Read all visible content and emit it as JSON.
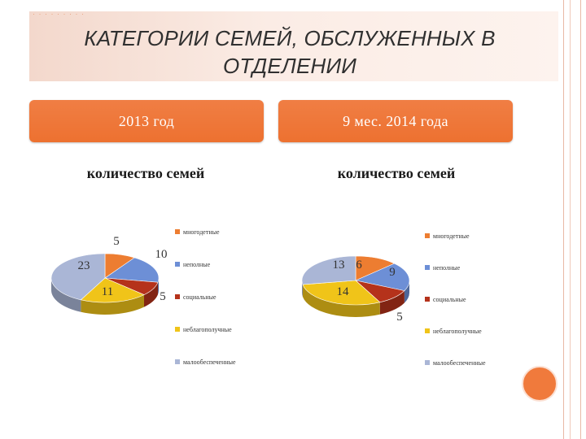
{
  "slide": {
    "title": "КАТЕГОРИИ СЕМЕЙ, ОБСЛУЖЕННЫХ В ОТДЕЛЕНИИ",
    "tab_left": "2013 год",
    "tab_right": "9 мес. 2014 года"
  },
  "chart_data": [
    {
      "type": "pie",
      "title": "количество семей",
      "categories": [
        "многодетные",
        "неполные",
        "социальные",
        "неблагополучные",
        "малообеспеченные"
      ],
      "values": [
        5,
        10,
        5,
        11,
        23
      ],
      "colors": [
        "#ed7d31",
        "#6d8fd6",
        "#b5321b",
        "#f0c419",
        "#aab6d6"
      ],
      "legend": "right"
    },
    {
      "type": "pie",
      "title": "количество семей",
      "categories": [
        "многодетные",
        "неполные",
        "социальные",
        "неблагополучные",
        "малообеспеченные"
      ],
      "values": [
        6,
        9,
        5,
        14,
        13
      ],
      "colors": [
        "#ed7d31",
        "#6d8fd6",
        "#b5321b",
        "#f0c419",
        "#aab6d6"
      ],
      "legend": "right"
    }
  ]
}
